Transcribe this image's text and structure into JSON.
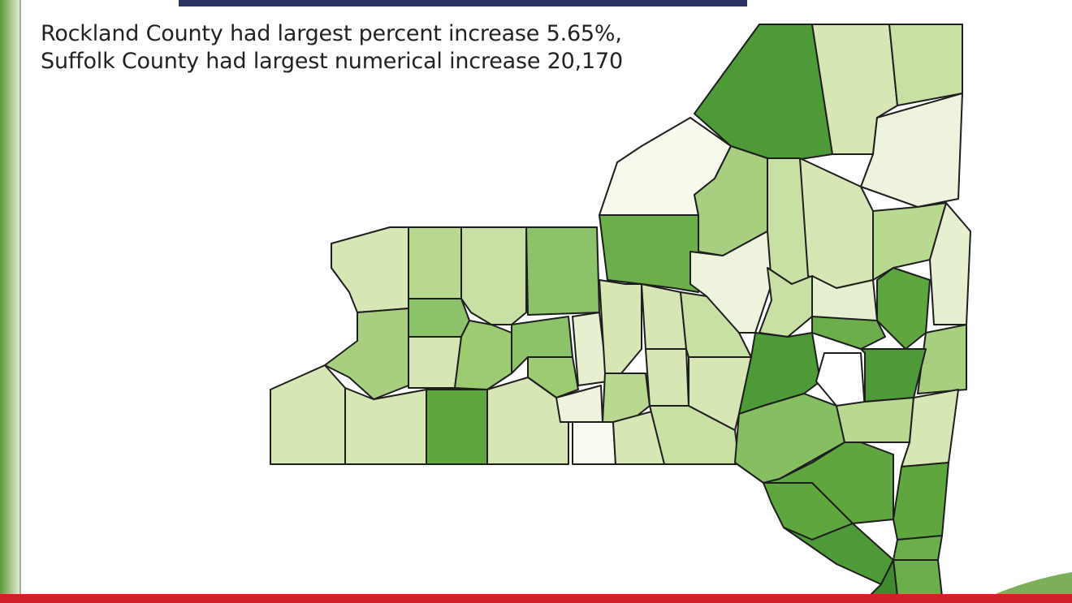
{
  "annotation": {
    "lines": [
      "Rockland County had largest percent increase 5.65%,",
      "Suffolk County had largest numerical increase 20,170"
    ]
  }
}
